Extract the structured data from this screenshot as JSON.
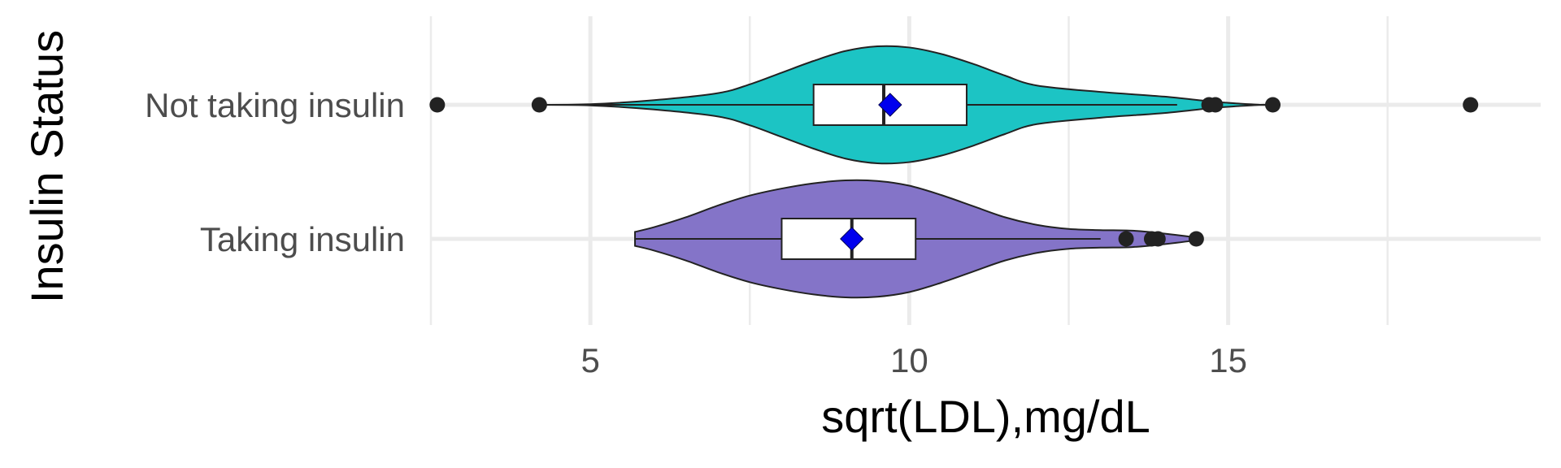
{
  "chart_data": {
    "type": "violin",
    "orientation": "horizontal",
    "xlabel": "sqrt(LDL),mg/dL",
    "ylabel": "Insulin Status",
    "xlim": [
      2.5,
      19.9
    ],
    "x_ticks": [
      5,
      10,
      15
    ],
    "grid": true,
    "legend": "none",
    "categories": [
      "Not taking insulin",
      "Taking insulin"
    ],
    "groups": [
      {
        "name": "Not taking insulin",
        "fill": "#1CC4C4",
        "box": {
          "q1": 8.5,
          "median": 9.6,
          "q3": 10.9,
          "whisker_low": 4.2,
          "whisker_high": 14.2
        },
        "mean": 9.7,
        "outliers": [
          2.6,
          4.2,
          14.7,
          14.8,
          15.7,
          18.8
        ],
        "violin_min": 4.2,
        "violin_max": 15.5,
        "density_x": [
          4.2,
          5.0,
          6.0,
          7.0,
          7.5,
          8.0,
          8.5,
          9.0,
          9.5,
          10.0,
          10.5,
          11.0,
          11.5,
          12.0,
          13.0,
          14.0,
          14.8,
          15.5
        ],
        "density_w": [
          0.0,
          0.01,
          0.08,
          0.2,
          0.35,
          0.55,
          0.75,
          0.92,
          1.0,
          0.98,
          0.87,
          0.7,
          0.5,
          0.33,
          0.22,
          0.14,
          0.05,
          0.0
        ]
      },
      {
        "name": "Taking insulin",
        "fill": "#8474C8",
        "box": {
          "q1": 8.0,
          "median": 9.1,
          "q3": 10.1,
          "whisker_low": 5.7,
          "whisker_high": 13.0
        },
        "mean": 9.1,
        "outliers": [
          13.4,
          13.8,
          13.9,
          14.5
        ],
        "violin_min": 5.7,
        "violin_max": 14.5,
        "density_x": [
          5.7,
          6.0,
          6.5,
          7.0,
          7.5,
          8.0,
          8.5,
          9.0,
          9.5,
          10.0,
          10.5,
          11.0,
          11.5,
          12.0,
          12.5,
          13.0,
          13.5,
          14.0,
          14.5
        ],
        "density_w": [
          0.12,
          0.2,
          0.37,
          0.57,
          0.74,
          0.86,
          0.95,
          1.0,
          0.99,
          0.91,
          0.75,
          0.56,
          0.37,
          0.24,
          0.17,
          0.15,
          0.14,
          0.09,
          0.02
        ]
      }
    ],
    "colors": {
      "box_fill": "#ffffff",
      "outline": "#222222",
      "mean_marker": "#0000EE",
      "grid": "#EBEBEB"
    }
  }
}
